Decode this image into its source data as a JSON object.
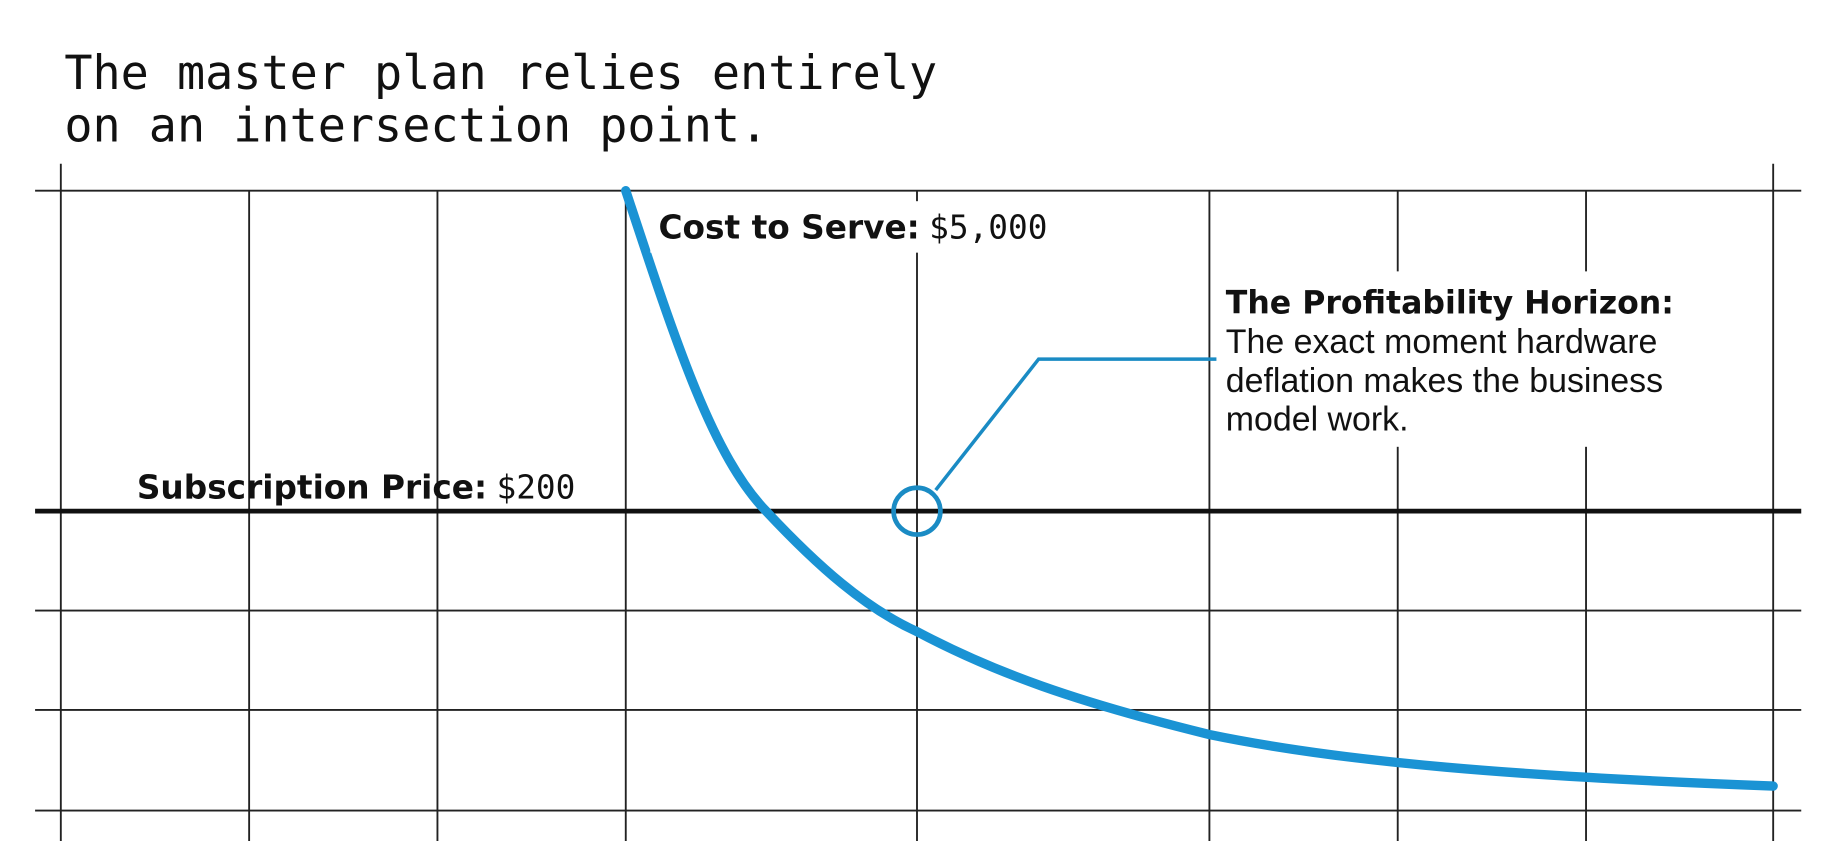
{
  "title": {
    "lines": [
      "The master plan relies entirely",
      "on an intersection point."
    ]
  },
  "cost_label": {
    "label": "Cost to Serve:",
    "value": "$5,000"
  },
  "price_label": {
    "label": "Subscription Price:",
    "value": "$200"
  },
  "annotation": {
    "heading": "The Profitability Horizon:",
    "lines": [
      "The exact moment hardware",
      "deflation makes the business",
      "model work."
    ]
  }
}
